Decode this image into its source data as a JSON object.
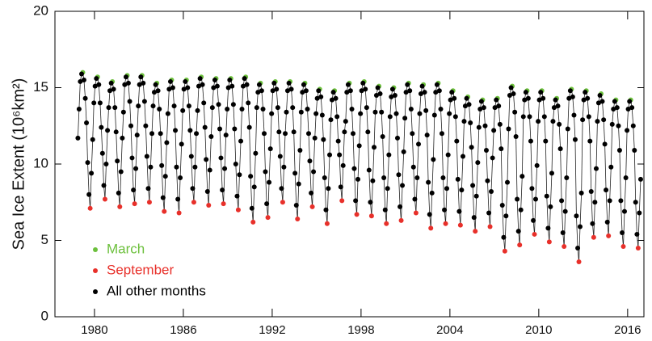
{
  "chart_data": {
    "type": "scatter",
    "ylabel": "Sea Ice Extent (10⁶km²)",
    "xlim": [
      1977.33,
      2017.1
    ],
    "ylim": [
      0,
      20
    ],
    "xticks": [
      1980,
      1986,
      1992,
      1998,
      2004,
      2010,
      2016
    ],
    "yticks": [
      0,
      5,
      10,
      15,
      20
    ],
    "connect": true,
    "legend": "lower left",
    "series": [
      {
        "name": "March",
        "color": "#6cc03c",
        "x": [
          1979.21,
          1980.21,
          1981.21,
          1982.21,
          1983.21,
          1984.21,
          1985.21,
          1986.21,
          1987.21,
          1988.21,
          1989.21,
          1990.21,
          1991.21,
          1992.21,
          1993.21,
          1994.21,
          1995.21,
          1996.21,
          1997.21,
          1998.21,
          1999.21,
          2000.21,
          2001.21,
          2002.21,
          2003.21,
          2004.21,
          2005.21,
          2006.21,
          2007.21,
          2008.21,
          2009.21,
          2010.21,
          2011.21,
          2012.21,
          2013.21,
          2014.21,
          2015.21,
          2016.21
        ],
        "values": [
          16.0,
          15.7,
          15.4,
          15.8,
          15.8,
          15.3,
          15.5,
          15.5,
          15.7,
          15.6,
          15.6,
          15.7,
          15.3,
          15.4,
          15.4,
          15.3,
          14.9,
          14.8,
          15.3,
          15.4,
          15.1,
          15.0,
          15.3,
          15.2,
          15.3,
          14.8,
          14.4,
          14.2,
          14.3,
          15.1,
          14.8,
          14.8,
          14.3,
          14.9,
          14.8,
          14.6,
          14.2,
          14.2
        ]
      },
      {
        "name": "September",
        "color": "#e8302a",
        "x": [
          1979.71,
          1980.71,
          1981.71,
          1982.71,
          1983.71,
          1984.71,
          1985.71,
          1986.71,
          1987.71,
          1988.71,
          1989.71,
          1990.71,
          1991.71,
          1992.71,
          1993.71,
          1994.71,
          1995.71,
          1996.71,
          1997.71,
          1998.71,
          1999.71,
          2000.71,
          2001.71,
          2002.71,
          2003.71,
          2004.71,
          2005.71,
          2006.71,
          2007.71,
          2008.71,
          2009.71,
          2010.71,
          2011.71,
          2012.71,
          2013.71,
          2014.71,
          2015.71,
          2016.71
        ],
        "values": [
          7.1,
          7.7,
          7.2,
          7.4,
          7.5,
          6.9,
          6.8,
          7.5,
          7.3,
          7.4,
          7.0,
          6.2,
          6.5,
          7.5,
          6.4,
          7.2,
          6.1,
          7.6,
          6.7,
          6.6,
          6.1,
          6.3,
          6.8,
          5.8,
          6.1,
          6.0,
          5.6,
          5.9,
          4.3,
          4.7,
          5.4,
          4.9,
          4.6,
          3.6,
          5.2,
          5.3,
          4.6,
          4.5
        ]
      },
      {
        "name": "All other months",
        "color": "#000000",
        "x": [
          1978.88,
          1978.96,
          1979.04,
          1979.13,
          1979.29,
          1979.38,
          1979.46,
          1979.54,
          1979.63,
          1979.79,
          1979.88,
          1979.96,
          1980.04,
          1980.13,
          1980.29,
          1980.38,
          1980.46,
          1980.54,
          1980.63,
          1980.79,
          1980.88,
          1980.96,
          1981.04,
          1981.13,
          1981.29,
          1981.38,
          1981.46,
          1981.54,
          1981.63,
          1981.79,
          1981.88,
          1981.96,
          1982.04,
          1982.13,
          1982.29,
          1982.38,
          1982.46,
          1982.54,
          1982.63,
          1982.79,
          1982.88,
          1982.96,
          1983.04,
          1983.13,
          1983.29,
          1983.38,
          1983.46,
          1983.54,
          1983.63,
          1983.79,
          1983.88,
          1983.96,
          1984.04,
          1984.13,
          1984.29,
          1984.38,
          1984.46,
          1984.54,
          1984.63,
          1984.79,
          1984.88,
          1984.96,
          1985.04,
          1985.13,
          1985.29,
          1985.38,
          1985.46,
          1985.54,
          1985.63,
          1985.79,
          1985.88,
          1985.96,
          1986.04,
          1986.13,
          1986.29,
          1986.38,
          1986.46,
          1986.54,
          1986.63,
          1986.79,
          1986.88,
          1986.96,
          1987.04,
          1987.13,
          1987.29,
          1987.38,
          1987.46,
          1987.54,
          1987.63,
          1987.79,
          1987.88,
          1987.96,
          1988.04,
          1988.13,
          1988.29,
          1988.38,
          1988.46,
          1988.54,
          1988.63,
          1988.79,
          1988.88,
          1988.96,
          1989.04,
          1989.13,
          1989.29,
          1989.38,
          1989.46,
          1989.54,
          1989.63,
          1989.79,
          1989.88,
          1989.96,
          1990.04,
          1990.13,
          1990.29,
          1990.38,
          1990.46,
          1990.54,
          1990.63,
          1990.79,
          1990.88,
          1990.96,
          1991.04,
          1991.13,
          1991.29,
          1991.38,
          1991.46,
          1991.54,
          1991.63,
          1991.79,
          1991.88,
          1991.96,
          1992.04,
          1992.13,
          1992.29,
          1992.38,
          1992.46,
          1992.54,
          1992.63,
          1992.79,
          1992.88,
          1992.96,
          1993.04,
          1993.13,
          1993.29,
          1993.38,
          1993.46,
          1993.54,
          1993.63,
          1993.79,
          1993.88,
          1993.96,
          1994.04,
          1994.13,
          1994.29,
          1994.38,
          1994.46,
          1994.54,
          1994.63,
          1994.79,
          1994.88,
          1994.96,
          1995.04,
          1995.13,
          1995.29,
          1995.38,
          1995.46,
          1995.54,
          1995.63,
          1995.79,
          1995.88,
          1995.96,
          1996.04,
          1996.13,
          1996.29,
          1996.38,
          1996.46,
          1996.54,
          1996.63,
          1996.79,
          1996.88,
          1996.96,
          1997.04,
          1997.13,
          1997.29,
          1997.38,
          1997.46,
          1997.54,
          1997.63,
          1997.79,
          1997.88,
          1997.96,
          1998.04,
          1998.13,
          1998.29,
          1998.38,
          1998.46,
          1998.54,
          1998.63,
          1998.79,
          1998.88,
          1998.96,
          1999.04,
          1999.13,
          1999.29,
          1999.38,
          1999.46,
          1999.54,
          1999.63,
          1999.79,
          1999.88,
          1999.96,
          2000.04,
          2000.13,
          2000.29,
          2000.38,
          2000.46,
          2000.54,
          2000.63,
          2000.79,
          2000.88,
          2000.96,
          2001.04,
          2001.13,
          2001.29,
          2001.38,
          2001.46,
          2001.54,
          2001.63,
          2001.79,
          2001.88,
          2001.96,
          2002.04,
          2002.13,
          2002.29,
          2002.38,
          2002.46,
          2002.54,
          2002.63,
          2002.79,
          2002.88,
          2002.96,
          2003.04,
          2003.13,
          2003.29,
          2003.38,
          2003.46,
          2003.54,
          2003.63,
          2003.79,
          2003.88,
          2003.96,
          2004.04,
          2004.13,
          2004.29,
          2004.38,
          2004.46,
          2004.54,
          2004.63,
          2004.79,
          2004.88,
          2004.96,
          2005.04,
          2005.13,
          2005.29,
          2005.38,
          2005.46,
          2005.54,
          2005.63,
          2005.79,
          2005.88,
          2005.96,
          2006.04,
          2006.13,
          2006.29,
          2006.38,
          2006.46,
          2006.54,
          2006.63,
          2006.79,
          2006.88,
          2006.96,
          2007.04,
          2007.13,
          2007.29,
          2007.38,
          2007.46,
          2007.54,
          2007.63,
          2007.79,
          2007.88,
          2007.96,
          2008.04,
          2008.13,
          2008.29,
          2008.38,
          2008.46,
          2008.54,
          2008.63,
          2008.79,
          2008.88,
          2008.96,
          2009.04,
          2009.13,
          2009.29,
          2009.38,
          2009.46,
          2009.54,
          2009.63,
          2009.79,
          2009.88,
          2009.96,
          2010.04,
          2010.13,
          2010.29,
          2010.38,
          2010.46,
          2010.54,
          2010.63,
          2010.79,
          2010.88,
          2010.96,
          2011.04,
          2011.13,
          2011.29,
          2011.38,
          2011.46,
          2011.54,
          2011.63,
          2011.79,
          2011.88,
          2011.96,
          2012.04,
          2012.13,
          2012.29,
          2012.38,
          2012.46,
          2012.54,
          2012.63,
          2012.79,
          2012.88,
          2012.96,
          2013.04,
          2013.13,
          2013.29,
          2013.38,
          2013.46,
          2013.54,
          2013.63,
          2013.79,
          2013.88,
          2013.96,
          2014.04,
          2014.13,
          2014.29,
          2014.38,
          2014.46,
          2014.54,
          2014.63,
          2014.79,
          2014.88,
          2014.96,
          2015.04,
          2015.13,
          2015.29,
          2015.38,
          2015.46,
          2015.54,
          2015.63,
          2015.79,
          2015.88,
          2015.96,
          2016.04,
          2016.13,
          2016.29,
          2016.38,
          2016.46,
          2016.54,
          2016.63,
          2016.79,
          2016.88
        ],
        "values": [
          11.7,
          13.6,
          15.4,
          15.9,
          15.5,
          14.3,
          12.7,
          10.1,
          8.0,
          9.4,
          11.6,
          14.0,
          15.1,
          15.6,
          15.2,
          14.0,
          12.4,
          10.7,
          8.6,
          10.0,
          12.2,
          13.7,
          14.8,
          15.3,
          14.9,
          13.7,
          12.1,
          10.2,
          8.1,
          9.5,
          11.7,
          13.4,
          15.2,
          15.7,
          15.3,
          14.1,
          12.5,
          10.4,
          8.3,
          9.7,
          11.9,
          13.8,
          15.2,
          15.7,
          15.3,
          14.1,
          12.5,
          10.5,
          8.4,
          9.8,
          12.0,
          13.8,
          14.7,
          15.2,
          14.8,
          13.6,
          12.0,
          9.9,
          7.8,
          9.2,
          11.4,
          13.3,
          14.9,
          15.4,
          15.0,
          13.8,
          12.2,
          9.8,
          7.7,
          9.1,
          11.3,
          13.5,
          14.9,
          15.4,
          15.0,
          13.8,
          12.2,
          10.5,
          8.4,
          9.8,
          12.0,
          13.5,
          15.1,
          15.6,
          15.2,
          14.0,
          12.4,
          10.3,
          8.2,
          9.6,
          11.8,
          13.7,
          15.0,
          15.5,
          15.1,
          13.9,
          12.3,
          10.4,
          8.3,
          9.7,
          11.9,
          13.6,
          15.0,
          15.5,
          15.1,
          13.9,
          12.3,
          10.0,
          7.9,
          9.3,
          11.5,
          13.6,
          15.1,
          15.6,
          15.2,
          14.0,
          12.4,
          9.2,
          7.1,
          8.5,
          10.7,
          13.7,
          14.7,
          15.2,
          14.8,
          13.6,
          12.0,
          9.5,
          7.4,
          8.8,
          11.0,
          13.3,
          14.8,
          15.3,
          14.9,
          13.7,
          12.1,
          10.5,
          8.4,
          9.8,
          12.0,
          13.4,
          14.8,
          15.3,
          14.9,
          13.7,
          12.1,
          9.4,
          7.3,
          8.7,
          10.9,
          13.4,
          14.7,
          15.2,
          14.8,
          13.6,
          12.0,
          10.2,
          8.1,
          9.5,
          11.7,
          13.3,
          14.3,
          14.8,
          14.4,
          13.2,
          11.6,
          9.1,
          7.0,
          8.4,
          10.6,
          12.9,
          14.2,
          14.7,
          14.3,
          13.1,
          11.5,
          10.6,
          8.5,
          9.9,
          12.1,
          12.8,
          14.7,
          15.2,
          14.8,
          13.6,
          12.0,
          9.7,
          7.6,
          9.0,
          11.2,
          13.3,
          14.8,
          15.3,
          14.9,
          13.7,
          12.1,
          9.6,
          7.5,
          8.9,
          11.1,
          13.4,
          14.5,
          15.0,
          14.6,
          13.4,
          11.8,
          9.1,
          7.0,
          8.4,
          10.6,
          13.1,
          14.4,
          14.9,
          14.5,
          13.3,
          11.7,
          9.3,
          7.2,
          8.6,
          10.8,
          13.0,
          14.7,
          15.2,
          14.8,
          13.6,
          12.0,
          9.8,
          7.7,
          9.1,
          11.3,
          13.3,
          14.6,
          15.1,
          14.7,
          13.5,
          11.9,
          8.8,
          6.7,
          8.1,
          10.3,
          13.2,
          14.7,
          15.2,
          14.8,
          13.6,
          12.0,
          9.1,
          7.0,
          8.4,
          10.6,
          13.3,
          14.2,
          14.7,
          14.3,
          13.1,
          11.5,
          9.0,
          6.9,
          8.3,
          10.5,
          12.8,
          13.8,
          14.3,
          13.9,
          12.7,
          11.1,
          8.6,
          6.5,
          7.9,
          10.1,
          12.4,
          13.6,
          14.1,
          13.7,
          12.5,
          10.9,
          8.9,
          6.8,
          8.2,
          10.4,
          12.2,
          13.7,
          14.2,
          13.8,
          12.6,
          11.0,
          7.3,
          5.2,
          6.6,
          8.8,
          12.3,
          14.5,
          15.0,
          14.6,
          13.4,
          11.8,
          7.7,
          5.6,
          7.0,
          9.2,
          13.1,
          14.2,
          14.7,
          14.3,
          13.1,
          11.5,
          8.4,
          6.3,
          7.7,
          9.9,
          12.8,
          14.2,
          14.7,
          14.3,
          13.1,
          11.5,
          7.9,
          5.8,
          7.2,
          9.4,
          12.8,
          13.7,
          14.2,
          13.8,
          12.6,
          11.0,
          7.6,
          5.5,
          6.9,
          9.1,
          12.3,
          14.3,
          14.8,
          14.4,
          13.2,
          11.6,
          6.6,
          4.5,
          5.9,
          8.1,
          12.9,
          14.2,
          14.7,
          14.3,
          13.1,
          11.5,
          8.2,
          6.1,
          7.5,
          9.7,
          12.8,
          14.0,
          14.5,
          14.1,
          12.9,
          11.3,
          8.3,
          6.2,
          7.6,
          9.8,
          12.6,
          13.6,
          14.1,
          13.7,
          12.5,
          10.9,
          7.6,
          5.5,
          6.9,
          9.1,
          12.2,
          13.6,
          14.1,
          13.7,
          12.5,
          10.9,
          7.5,
          5.4,
          6.8,
          9.0
        ]
      }
    ]
  }
}
